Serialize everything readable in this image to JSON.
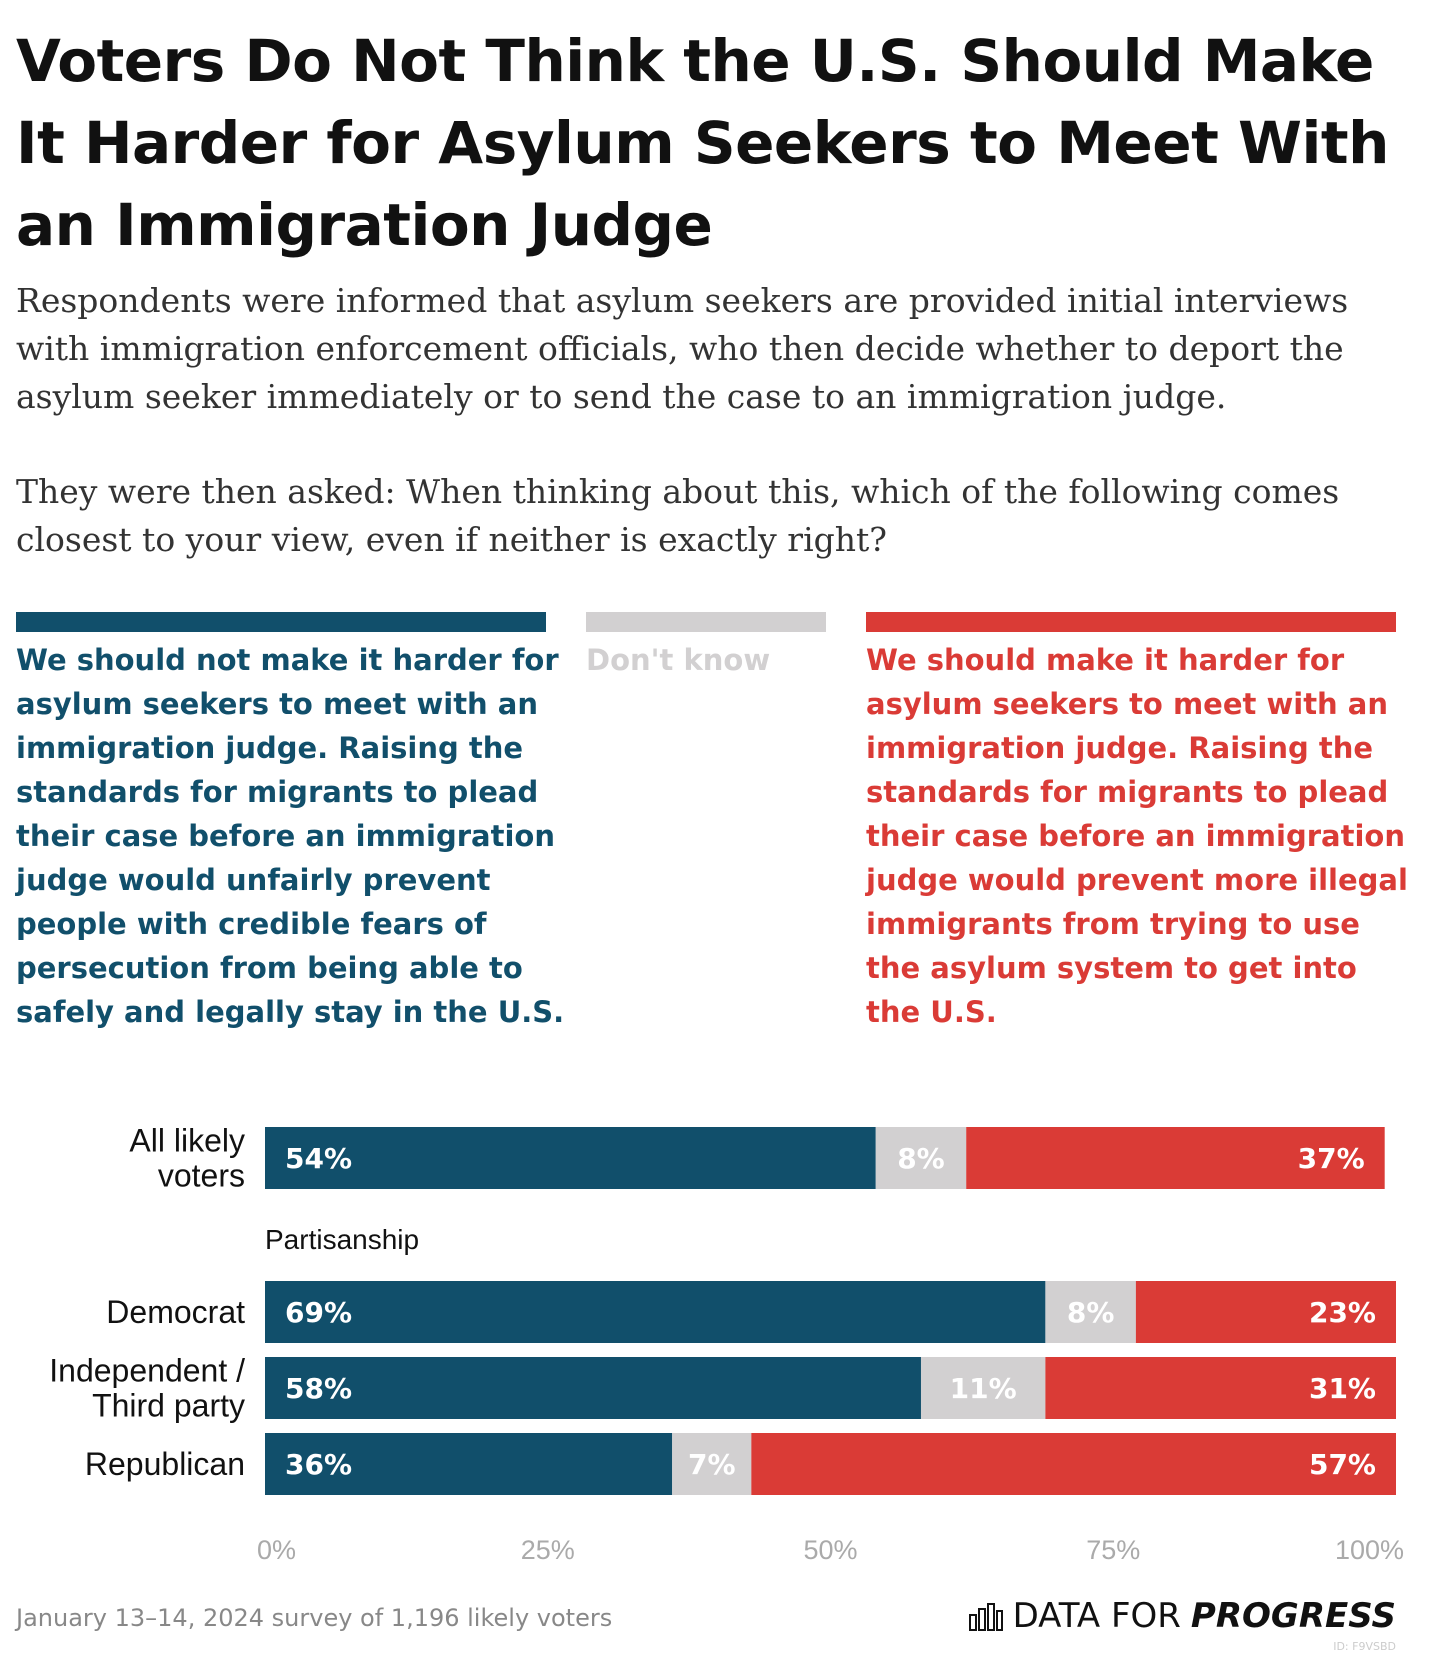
{
  "title": "Voters Do Not Think the U.S. Should Make It Harder for Asylum Seekers to Meet With an Immigration Judge",
  "subtitle_1": "Respondents were informed that asylum seekers are provided initial interviews with immigration enforcement officials, who then decide whether to deport the asylum seeker immediately or to send the case to an immigration judge.",
  "subtitle_2": "They were then asked: When thinking about this, which of the following comes closest to your view, even if neither is exactly right?",
  "legend": [
    {
      "label": "We should not make it harder for asylum seekers to meet with an immigration judge. Raising the standards for migrants to plead their case before an immigration judge would unfairly prevent people with credible fears of persecution from being able to safely and legally stay in the U.S.",
      "color": "#114f6b"
    },
    {
      "label": "Don't know",
      "color": "#d2d0d1"
    },
    {
      "label": "We should make it harder for asylum seekers to meet with an immigration judge. Raising the standards for migrants to plead their case before an immigration judge would prevent more illegal immigrants from trying to use the asylum system to get into the U.S.",
      "color": "#da3b36"
    }
  ],
  "chart_data": {
    "type": "bar",
    "orientation": "horizontal-stacked",
    "categories": [
      "All likely voters",
      "Democrat",
      "Independent / Third party",
      "Republican"
    ],
    "group_label": "Partisanship",
    "series": [
      {
        "name": "We should not make it harder",
        "values": [
          54,
          69,
          58,
          36
        ],
        "labels": [
          "54%",
          "69%",
          "58%",
          "36%"
        ]
      },
      {
        "name": "Don't know",
        "values": [
          8,
          8,
          11,
          7
        ],
        "labels": [
          "8%",
          "8%",
          "11%",
          "7%"
        ]
      },
      {
        "name": "We should make it harder",
        "values": [
          37,
          23,
          31,
          57
        ],
        "labels": [
          "37%",
          "23%",
          "31%",
          "57%"
        ]
      }
    ],
    "xlim": [
      0,
      100
    ],
    "ticks": [
      "0%",
      "25%",
      "50%",
      "75%",
      "100%"
    ]
  },
  "footer": {
    "note": "January 13–14, 2024 survey of 1,196 likely voters",
    "brand_regular": "DATA FOR",
    "brand_bold": "PROGRESS",
    "id": "ID: F9VSBD"
  }
}
